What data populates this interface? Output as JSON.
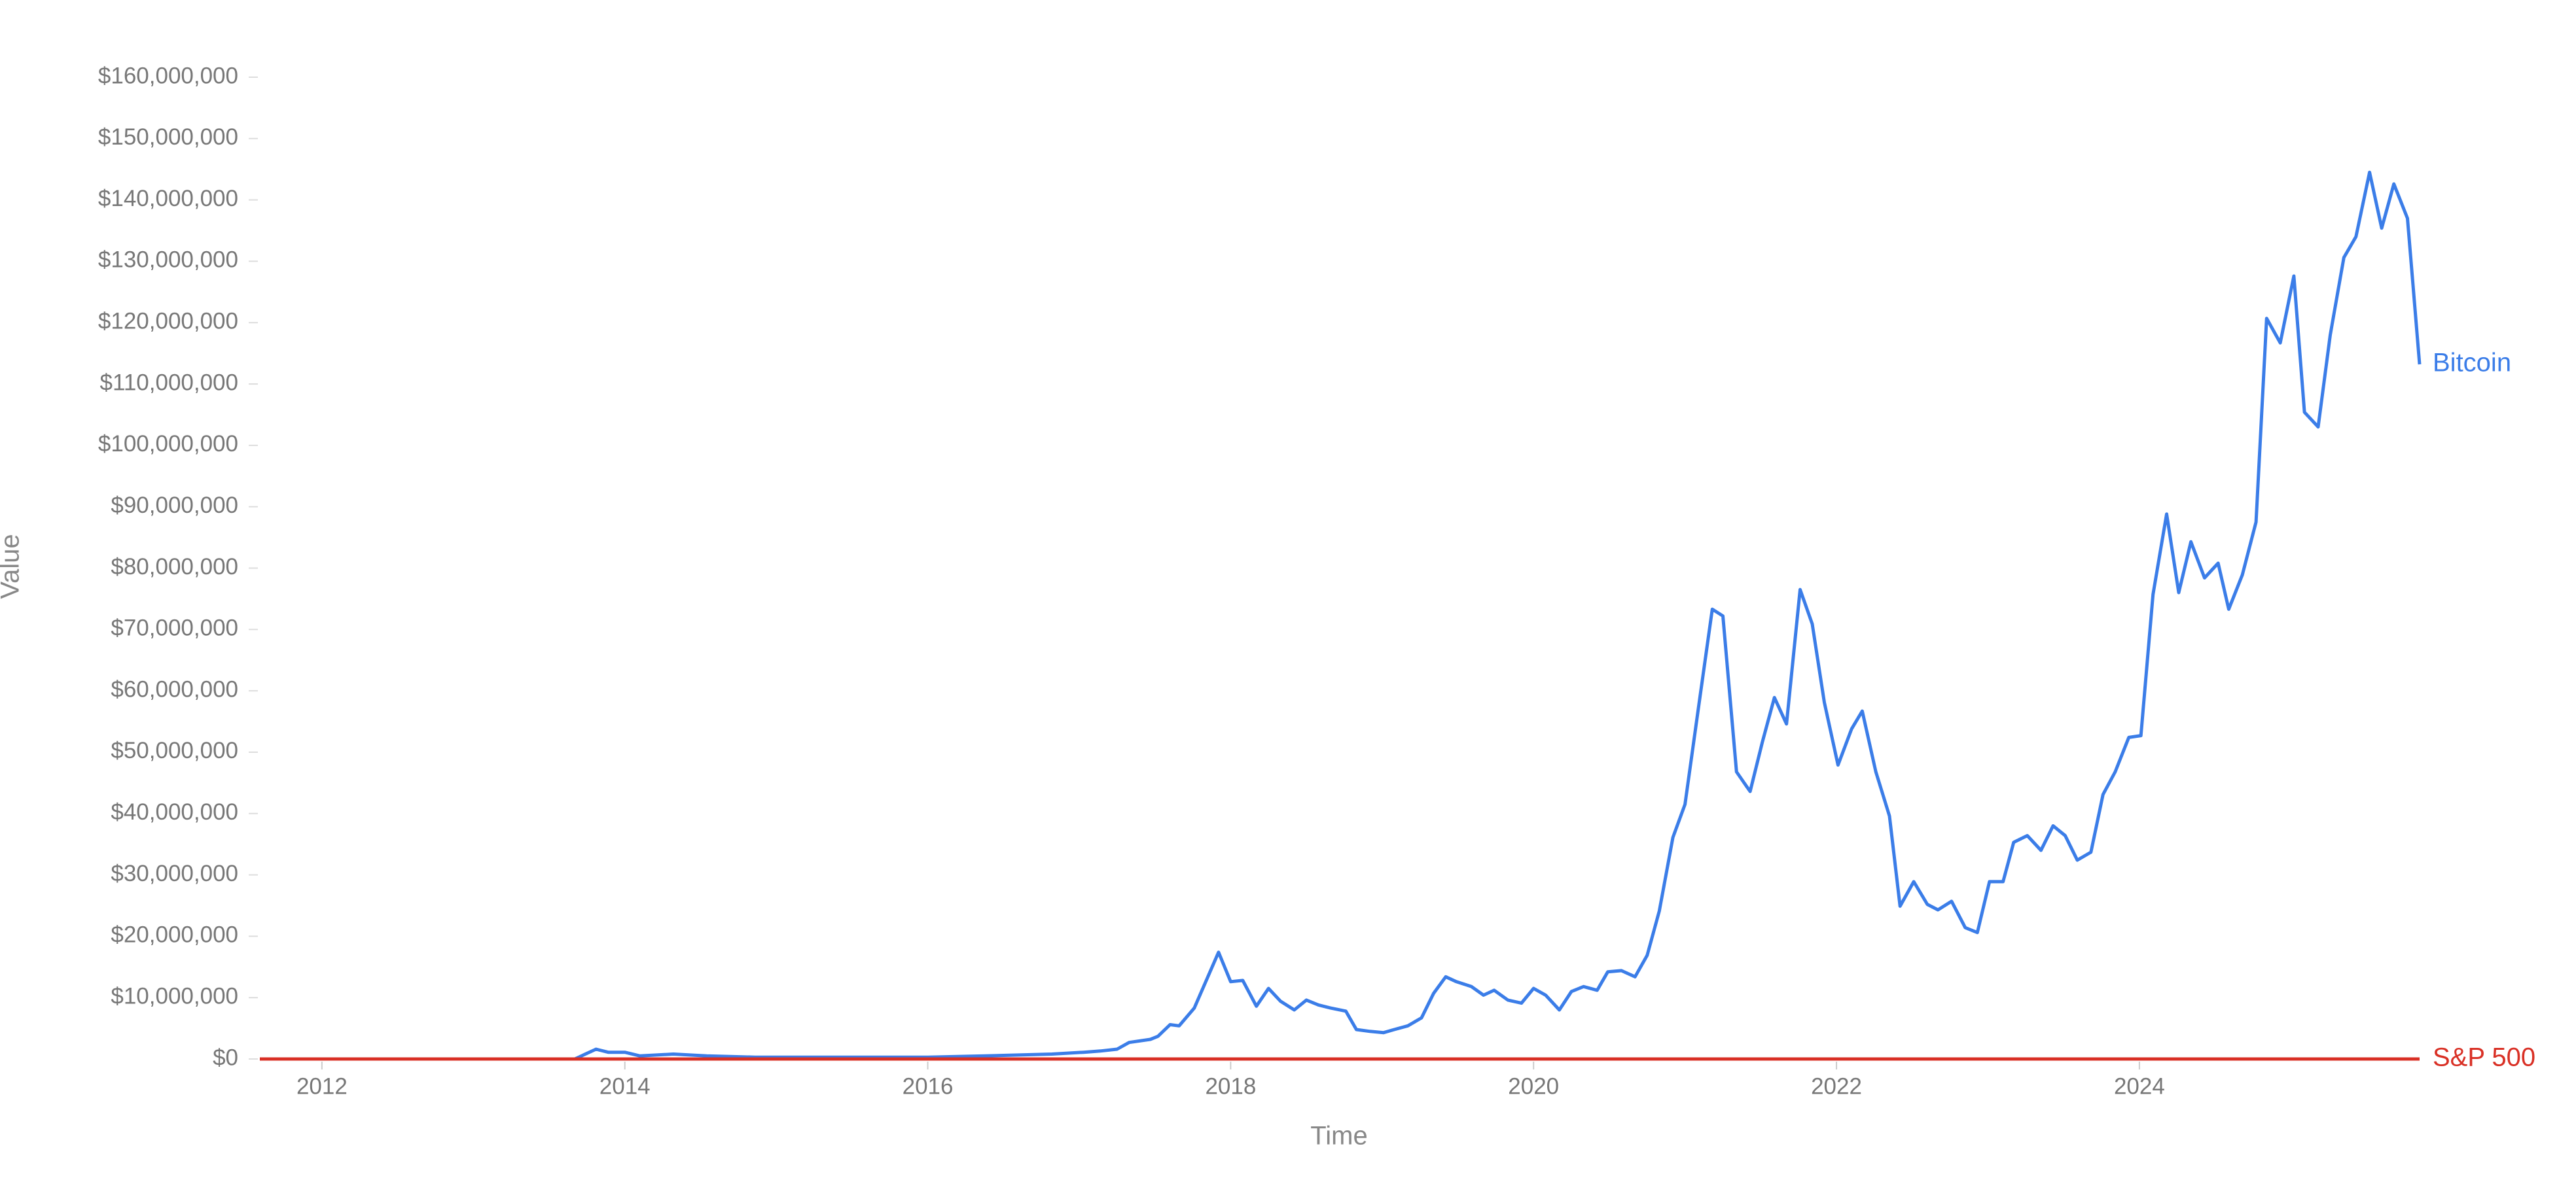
{
  "chart_data": {
    "type": "line",
    "x_label": "Time",
    "y_label": "Value",
    "x": [
      2011.59,
      2013.67,
      2013.81,
      2013.89,
      2014.0,
      2014.1,
      2014.32,
      2014.54,
      2014.86,
      2015.3,
      2015.73,
      2016.0,
      2016.38,
      2016.82,
      2017.03,
      2017.14,
      2017.25,
      2017.33,
      2017.47,
      2017.52,
      2017.6,
      2017.66,
      2017.76,
      2017.92,
      2018.0,
      2018.08,
      2018.17,
      2018.25,
      2018.33,
      2018.42,
      2018.5,
      2018.58,
      2018.66,
      2018.76,
      2018.83,
      2018.92,
      2019.01,
      2019.08,
      2019.17,
      2019.26,
      2019.34,
      2019.42,
      2019.49,
      2019.59,
      2019.67,
      2019.74,
      2019.83,
      2019.92,
      2020.0,
      2020.08,
      2020.17,
      2020.25,
      2020.33,
      2020.42,
      2020.49,
      2020.58,
      2020.67,
      2020.75,
      2020.83,
      2020.92,
      2021.0,
      2021.09,
      2021.18,
      2021.25,
      2021.34,
      2021.43,
      2021.51,
      2021.59,
      2021.67,
      2021.76,
      2021.84,
      2021.92,
      2022.01,
      2022.1,
      2022.17,
      2022.26,
      2022.35,
      2022.42,
      2022.51,
      2022.6,
      2022.67,
      2022.76,
      2022.85,
      2022.93,
      2023.01,
      2023.1,
      2023.17,
      2023.26,
      2023.35,
      2023.43,
      2023.51,
      2023.59,
      2023.68,
      2023.76,
      2023.84,
      2023.93,
      2024.01,
      2024.09,
      2024.18,
      2024.26,
      2024.34,
      2024.43,
      2024.52,
      2024.59,
      2024.68,
      2024.77,
      2024.84,
      2024.93,
      2025.02,
      2025.09,
      2025.18,
      2025.26,
      2025.35,
      2025.43,
      2025.52,
      2025.6,
      2025.68,
      2025.77,
      2025.85
    ],
    "series": [
      {
        "name": "Bitcoin",
        "color": "#3b7de8",
        "values": [
          0,
          0,
          1600000,
          1100000,
          1100000,
          500000,
          800000,
          500000,
          300000,
          300000,
          300000,
          300000,
          500000,
          800000,
          1100000,
          1300000,
          1600000,
          2700000,
          3200000,
          3700000,
          5600000,
          5400000,
          8300000,
          17400000,
          12600000,
          12800000,
          8600000,
          11500000,
          9400000,
          8000000,
          9600000,
          8800000,
          8300000,
          7800000,
          4800000,
          4500000,
          4300000,
          4800000,
          5400000,
          6700000,
          10700000,
          13400000,
          12600000,
          11800000,
          10400000,
          11200000,
          9600000,
          9100000,
          11500000,
          10400000,
          8000000,
          11000000,
          11800000,
          11200000,
          14200000,
          14400000,
          13400000,
          16900000,
          24100000,
          36100000,
          41500000,
          57500000,
          73300000,
          72200000,
          46800000,
          43600000,
          51600000,
          58900000,
          54600000,
          76500000,
          70900000,
          58100000,
          47900000,
          53800000,
          56700000,
          46800000,
          39600000,
          24900000,
          28900000,
          25200000,
          24300000,
          25700000,
          21400000,
          20600000,
          28900000,
          28900000,
          35300000,
          36400000,
          34000000,
          38000000,
          36400000,
          32400000,
          33700000,
          43100000,
          46800000,
          52400000,
          52700000,
          75700000,
          88800000,
          76000000,
          84300000,
          78400000,
          80800000,
          73300000,
          78900000,
          87500000,
          120700000,
          116700000,
          127600000,
          105400000,
          103000000,
          118000000,
          130600000,
          134000000,
          144500000,
          135400000,
          142600000,
          137000000,
          113200000
        ]
      },
      {
        "name": "S&P 500",
        "color": "#d93025",
        "x": [
          2011.59,
          2025.85
        ],
        "values": [
          0,
          0
        ]
      }
    ],
    "xlim": [
      2011.59,
      2025.85
    ],
    "xticks": [
      2012,
      2014,
      2016,
      2018,
      2020,
      2022,
      2024
    ],
    "ylim": [
      0,
      160000000
    ],
    "yticks": [
      {
        "value": 0,
        "label": "$0"
      },
      {
        "value": 10000000,
        "label": "$10,000,000"
      },
      {
        "value": 20000000,
        "label": "$20,000,000"
      },
      {
        "value": 30000000,
        "label": "$30,000,000"
      },
      {
        "value": 40000000,
        "label": "$40,000,000"
      },
      {
        "value": 50000000,
        "label": "$50,000,000"
      },
      {
        "value": 60000000,
        "label": "$60,000,000"
      },
      {
        "value": 70000000,
        "label": "$70,000,000"
      },
      {
        "value": 80000000,
        "label": "$80,000,000"
      },
      {
        "value": 90000000,
        "label": "$90,000,000"
      },
      {
        "value": 100000000,
        "label": "$100,000,000"
      },
      {
        "value": 110000000,
        "label": "$110,000,000"
      },
      {
        "value": 120000000,
        "label": "$120,000,000"
      },
      {
        "value": 130000000,
        "label": "$130,000,000"
      },
      {
        "value": 140000000,
        "label": "$140,000,000"
      },
      {
        "value": 150000000,
        "label": "$150,000,000"
      },
      {
        "value": 160000000,
        "label": "$160,000,000"
      }
    ],
    "grid": false,
    "legend": "line-end"
  }
}
